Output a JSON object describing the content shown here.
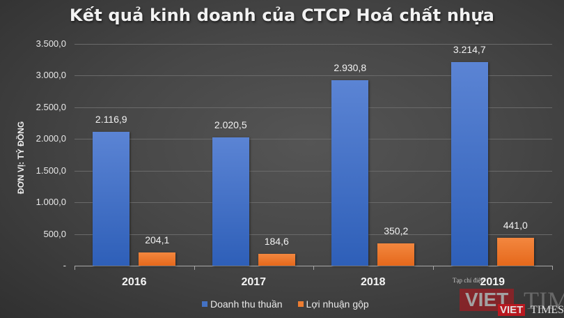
{
  "chart_data": {
    "type": "bar",
    "title": "Kết quả kinh doanh của CTCP Hoá chất nhựa",
    "xlabel": "",
    "ylabel": "ĐƠN VỊ: TỶ ĐỒNG",
    "categories": [
      "2016",
      "2017",
      "2018",
      "2019"
    ],
    "series": [
      {
        "name": "Doanh thu thuần",
        "color": "#4472c4",
        "values": [
          2116.9,
          2020.5,
          2930.8,
          3214.7
        ],
        "labels": [
          "2.116,9",
          "2.020,5",
          "2.930,8",
          "3.214,7"
        ]
      },
      {
        "name": "Lợi nhuận gộp",
        "color": "#ed7d31",
        "values": [
          204.1,
          184.6,
          350.2,
          441.0
        ],
        "labels": [
          "204,1",
          "184,6",
          "350,2",
          "441,0"
        ]
      }
    ],
    "ylim": [
      0,
      3500
    ],
    "yticks": [
      "-",
      "500,0",
      "1.000,0",
      "1.500,0",
      "2.000,0",
      "2.500,0",
      "3.000,0",
      "3.500,0"
    ],
    "grid": true,
    "legend_position": "bottom"
  },
  "watermark": {
    "small_text": "Tạp chí điện",
    "brand_left": "VIET",
    "brand_right": "TIMES"
  }
}
